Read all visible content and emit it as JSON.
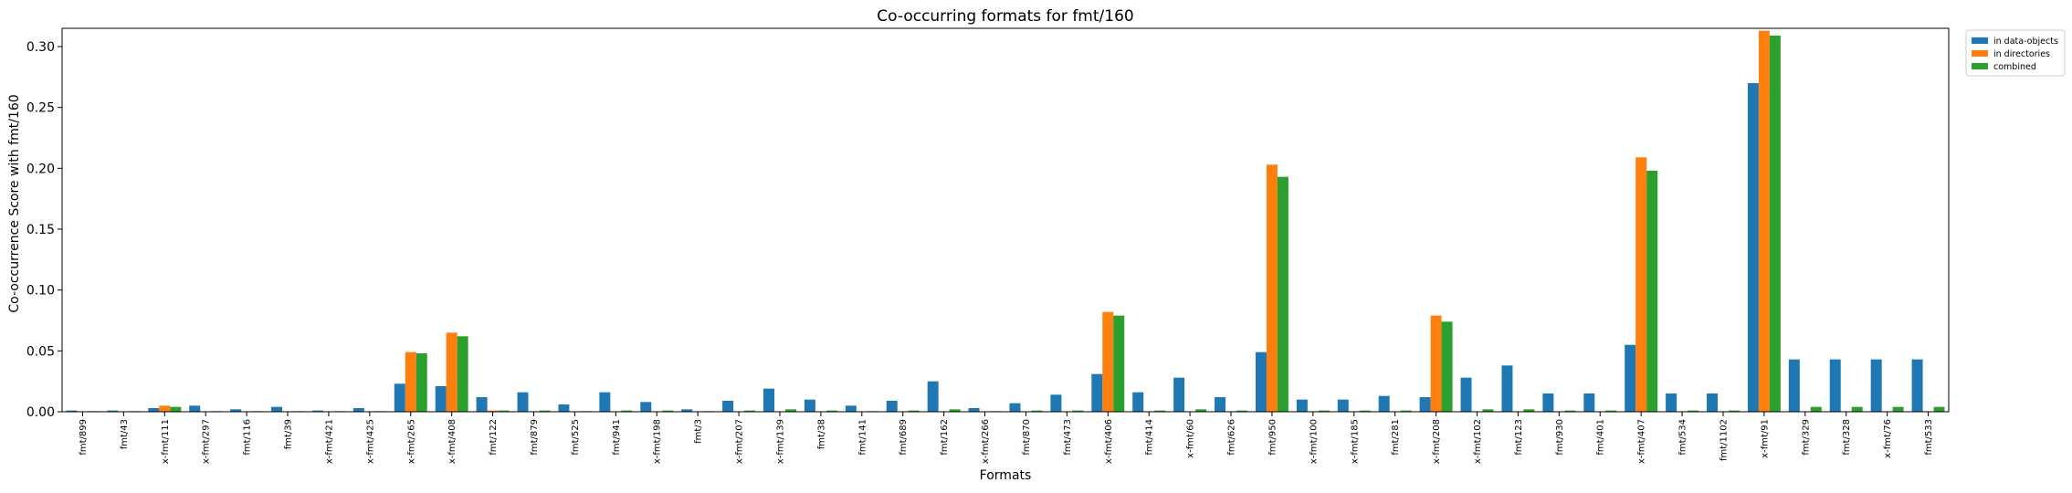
{
  "chart_data": {
    "type": "bar",
    "title": "Co-occurring formats for fmt/160",
    "xlabel": "Formats",
    "ylabel": "Co-occurrence Score with fmt/160",
    "ylim": [
      0,
      0.315
    ],
    "yticks": [
      0.0,
      0.05,
      0.1,
      0.15,
      0.2,
      0.25,
      0.3
    ],
    "ytick_labels": [
      "0.00",
      "0.05",
      "0.10",
      "0.15",
      "0.20",
      "0.25",
      "0.30"
    ],
    "grid": false,
    "legend_position": "outside-top-right",
    "categories": [
      "fmt/899",
      "fmt/43",
      "x-fmt/111",
      "x-fmt/297",
      "fmt/116",
      "fmt/39",
      "x-fmt/421",
      "x-fmt/425",
      "x-fmt/265",
      "x-fmt/408",
      "fmt/122",
      "fmt/879",
      "fmt/525",
      "fmt/941",
      "x-fmt/198",
      "fmt/3",
      "x-fmt/207",
      "x-fmt/139",
      "fmt/38",
      "fmt/141",
      "fmt/689",
      "fmt/162",
      "x-fmt/266",
      "fmt/870",
      "fmt/473",
      "x-fmt/406",
      "fmt/414",
      "x-fmt/60",
      "fmt/626",
      "fmt/950",
      "x-fmt/100",
      "x-fmt/185",
      "fmt/281",
      "x-fmt/208",
      "x-fmt/102",
      "fmt/123",
      "fmt/930",
      "fmt/401",
      "x-fmt/407",
      "fmt/534",
      "fmt/1102",
      "x-fmt/91",
      "fmt/329",
      "fmt/328",
      "x-fmt/76",
      "fmt/533"
    ],
    "series": [
      {
        "name": "in data-objects",
        "color": "#1f77b4",
        "values": [
          0.001,
          0.001,
          0.003,
          0.005,
          0.002,
          0.004,
          0.001,
          0.003,
          0.023,
          0.021,
          0.012,
          0.016,
          0.006,
          0.016,
          0.008,
          0.002,
          0.009,
          0.019,
          0.01,
          0.005,
          0.009,
          0.025,
          0.003,
          0.007,
          0.014,
          0.031,
          0.016,
          0.028,
          0.012,
          0.049,
          0.01,
          0.01,
          0.013,
          0.012,
          0.028,
          0.038,
          0.015,
          0.015,
          0.055,
          0.015,
          0.015,
          0.27,
          0.043,
          0.043,
          0.043,
          0.043
        ]
      },
      {
        "name": "in directories",
        "color": "#ff7f0e",
        "values": [
          0,
          0,
          0.005,
          0,
          0,
          0,
          0,
          0,
          0.049,
          0.065,
          0.001,
          0,
          0,
          0,
          0,
          0,
          0,
          0,
          0,
          0,
          0,
          0,
          0,
          0,
          0,
          0.082,
          0,
          0,
          0,
          0.203,
          0,
          0,
          0,
          0.079,
          0,
          0,
          0,
          0,
          0.209,
          0,
          0,
          0.313,
          0,
          0,
          0,
          0
        ]
      },
      {
        "name": "combined",
        "color": "#2ca02c",
        "values": [
          0.0005,
          0.0005,
          0.004,
          0.0005,
          0.0005,
          0.0005,
          0.0005,
          0.0005,
          0.048,
          0.062,
          0.001,
          0.001,
          0.0005,
          0.001,
          0.001,
          0.0005,
          0.001,
          0.002,
          0.001,
          0.0005,
          0.001,
          0.002,
          0.0005,
          0.001,
          0.001,
          0.079,
          0.001,
          0.002,
          0.001,
          0.193,
          0.001,
          0.001,
          0.001,
          0.074,
          0.002,
          0.002,
          0.001,
          0.001,
          0.198,
          0.001,
          0.001,
          0.309,
          0.004,
          0.004,
          0.004,
          0.004
        ]
      }
    ]
  }
}
